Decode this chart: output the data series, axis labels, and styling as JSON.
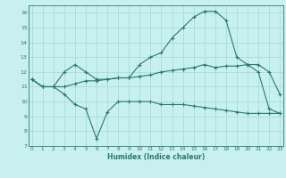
{
  "line1_x": [
    0,
    1,
    2,
    3,
    4,
    5,
    6,
    7,
    8,
    9,
    10,
    11,
    12,
    13,
    14,
    15,
    16,
    17,
    18,
    19,
    20,
    21,
    22,
    23
  ],
  "line1_y": [
    11.5,
    11.0,
    11.0,
    12.0,
    12.5,
    12.0,
    11.5,
    11.5,
    11.6,
    11.6,
    12.5,
    13.0,
    13.3,
    14.3,
    15.0,
    15.7,
    16.1,
    16.1,
    15.5,
    13.0,
    12.5,
    12.5,
    12.0,
    10.5
  ],
  "line2_x": [
    0,
    1,
    2,
    3,
    4,
    5,
    6,
    7,
    8,
    9,
    10,
    11,
    12,
    13,
    14,
    15,
    16,
    17,
    18,
    19,
    20,
    21,
    22,
    23
  ],
  "line2_y": [
    11.5,
    11.0,
    11.0,
    10.5,
    9.8,
    9.5,
    7.5,
    9.3,
    10.0,
    10.0,
    10.0,
    10.0,
    9.8,
    9.8,
    9.8,
    9.7,
    9.6,
    9.5,
    9.4,
    9.3,
    9.2,
    9.2,
    9.2,
    9.2
  ],
  "line3_x": [
    0,
    1,
    2,
    3,
    4,
    5,
    6,
    7,
    8,
    9,
    10,
    11,
    12,
    13,
    14,
    15,
    16,
    17,
    18,
    19,
    20,
    21,
    22,
    23
  ],
  "line3_y": [
    11.5,
    11.0,
    11.0,
    11.0,
    11.2,
    11.4,
    11.4,
    11.5,
    11.6,
    11.6,
    11.7,
    11.8,
    12.0,
    12.1,
    12.2,
    12.3,
    12.5,
    12.3,
    12.4,
    12.4,
    12.5,
    12.0,
    9.5,
    9.2
  ],
  "line_color": "#2a7a6a",
  "bg_color": "#c8f0f0",
  "grid_color": "#a0d8d8",
  "xlabel": "Humidex (Indice chaleur)",
  "ylim": [
    7,
    16.5
  ],
  "xlim": [
    -0.3,
    23.3
  ],
  "yticks": [
    7,
    8,
    9,
    10,
    11,
    12,
    13,
    14,
    15,
    16
  ],
  "xticks": [
    0,
    1,
    2,
    3,
    4,
    5,
    6,
    7,
    8,
    9,
    10,
    11,
    12,
    13,
    14,
    15,
    16,
    17,
    18,
    19,
    20,
    21,
    22,
    23
  ]
}
